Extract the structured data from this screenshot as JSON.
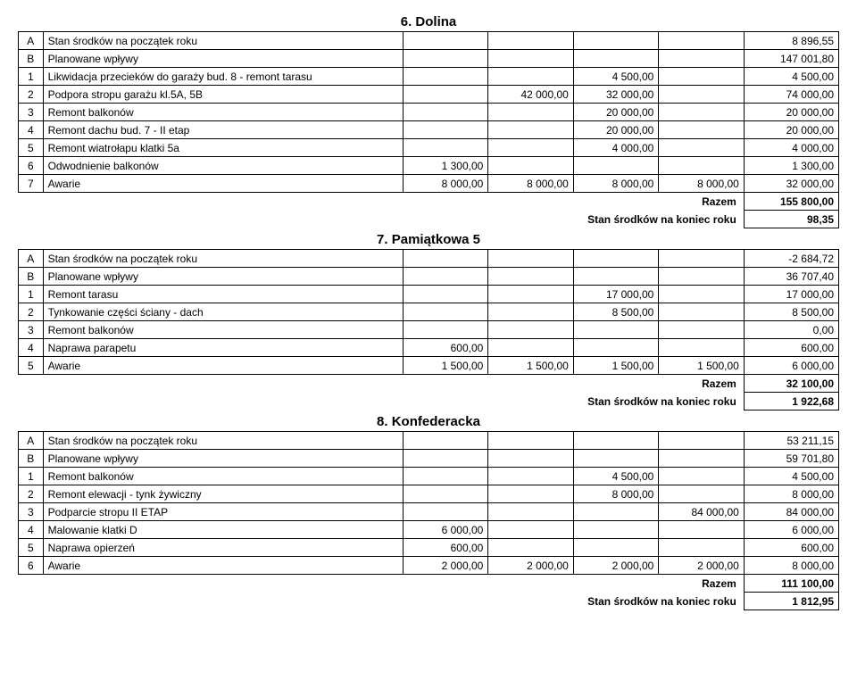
{
  "sections": [
    {
      "title": "6. Dolina",
      "rows": [
        {
          "idx": "A",
          "desc": "Stan środków na początek roku",
          "c1": "",
          "c2": "",
          "c3": "",
          "c4": "",
          "total": "8 896,55"
        },
        {
          "idx": "B",
          "desc": "Planowane wpływy",
          "c1": "",
          "c2": "",
          "c3": "",
          "c4": "",
          "total": "147 001,80"
        },
        {
          "idx": "1",
          "desc": "Likwidacja przecieków do garaży bud. 8 - remont tarasu",
          "c1": "",
          "c2": "",
          "c3": "4 500,00",
          "c4": "",
          "total": "4 500,00"
        },
        {
          "idx": "2",
          "desc": "Podpora stropu garażu kl.5A, 5B",
          "c1": "",
          "c2": "42 000,00",
          "c3": "32 000,00",
          "c4": "",
          "total": "74 000,00"
        },
        {
          "idx": "3",
          "desc": "Remont balkonów",
          "c1": "",
          "c2": "",
          "c3": "20 000,00",
          "c4": "",
          "total": "20 000,00"
        },
        {
          "idx": "4",
          "desc": "Remont dachu bud. 7 - II etap",
          "c1": "",
          "c2": "",
          "c3": "20 000,00",
          "c4": "",
          "total": "20 000,00"
        },
        {
          "idx": "5",
          "desc": "Remont wiatrołapu klatki 5a",
          "c1": "",
          "c2": "",
          "c3": "4 000,00",
          "c4": "",
          "total": "4 000,00"
        },
        {
          "idx": "6",
          "desc": "Odwodnienie balkonów",
          "c1": "1 300,00",
          "c2": "",
          "c3": "",
          "c4": "",
          "total": "1 300,00"
        },
        {
          "idx": "7",
          "desc": "Awarie",
          "c1": "8 000,00",
          "c2": "8 000,00",
          "c3": "8 000,00",
          "c4": "8 000,00",
          "total": "32 000,00"
        }
      ],
      "razem_label": "Razem",
      "razem_val": "155 800,00",
      "stan_label": "Stan środków na koniec roku",
      "stan_val": "98,35"
    },
    {
      "title": "7. Pamiątkowa 5",
      "rows": [
        {
          "idx": "A",
          "desc": "Stan środków na początek roku",
          "c1": "",
          "c2": "",
          "c3": "",
          "c4": "",
          "total": "-2 684,72"
        },
        {
          "idx": "B",
          "desc": "Planowane wpływy",
          "c1": "",
          "c2": "",
          "c3": "",
          "c4": "",
          "total": "36 707,40"
        },
        {
          "idx": "1",
          "desc": "Remont tarasu",
          "c1": "",
          "c2": "",
          "c3": "17 000,00",
          "c4": "",
          "total": "17 000,00"
        },
        {
          "idx": "2",
          "desc": "Tynkowanie części ściany - dach",
          "c1": "",
          "c2": "",
          "c3": "8 500,00",
          "c4": "",
          "total": "8 500,00"
        },
        {
          "idx": "3",
          "desc": "Remont balkonów",
          "c1": "",
          "c2": "",
          "c3": "",
          "c4": "",
          "total": "0,00"
        },
        {
          "idx": "4",
          "desc": "Naprawa parapetu",
          "c1": "600,00",
          "c2": "",
          "c3": "",
          "c4": "",
          "total": "600,00"
        },
        {
          "idx": "5",
          "desc": "Awarie",
          "c1": "1 500,00",
          "c2": "1 500,00",
          "c3": "1 500,00",
          "c4": "1 500,00",
          "total": "6 000,00"
        }
      ],
      "razem_label": "Razem",
      "razem_val": "32 100,00",
      "stan_label": "Stan środków na koniec roku",
      "stan_val": "1 922,68"
    },
    {
      "title": "8. Konfederacka",
      "rows": [
        {
          "idx": "A",
          "desc": "Stan środków na początek roku",
          "c1": "",
          "c2": "",
          "c3": "",
          "c4": "",
          "total": "53 211,15"
        },
        {
          "idx": "B",
          "desc": "Planowane wpływy",
          "c1": "",
          "c2": "",
          "c3": "",
          "c4": "",
          "total": "59 701,80"
        },
        {
          "idx": "1",
          "desc": "Remont balkonów",
          "c1": "",
          "c2": "",
          "c3": "4 500,00",
          "c4": "",
          "total": "4 500,00"
        },
        {
          "idx": "2",
          "desc": "Remont elewacji - tynk żywiczny",
          "c1": "",
          "c2": "",
          "c3": "8 000,00",
          "c4": "",
          "total": "8 000,00"
        },
        {
          "idx": "3",
          "desc": "Podparcie stropu II ETAP",
          "c1": "",
          "c2": "",
          "c3": "",
          "c4": "84 000,00",
          "total": "84 000,00"
        },
        {
          "idx": "4",
          "desc": "Malowanie klatki D",
          "c1": "6 000,00",
          "c2": "",
          "c3": "",
          "c4": "",
          "total": "6 000,00"
        },
        {
          "idx": "5",
          "desc": "Naprawa opierzeń",
          "c1": "600,00",
          "c2": "",
          "c3": "",
          "c4": "",
          "total": "600,00"
        },
        {
          "idx": "6",
          "desc": "Awarie",
          "c1": "2 000,00",
          "c2": "2 000,00",
          "c3": "2 000,00",
          "c4": "2 000,00",
          "total": "8 000,00"
        }
      ],
      "razem_label": "Razem",
      "razem_val": "111 100,00",
      "stan_label": "Stan środków na koniec roku",
      "stan_val": "1 812,95"
    }
  ]
}
